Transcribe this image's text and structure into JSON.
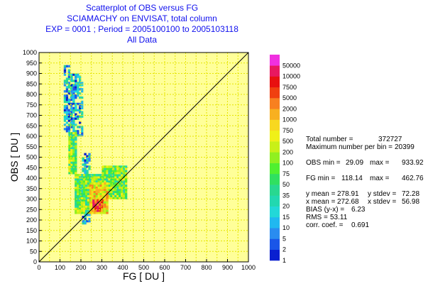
{
  "chart_data": {
    "type": "heatmap",
    "title_lines": [
      "Scatterplot of OBS versus FG",
      "SCIAMACHY on ENVISAT, total column",
      "EXP = 0001 ; Period = 2005100100 to 2005103118",
      "All Data"
    ],
    "xlabel": "FG  [ DU ]",
    "ylabel": "OBS  [ DU ]",
    "xlim": [
      0,
      1000
    ],
    "ylim": [
      0,
      1000
    ],
    "xticks": [
      "0",
      "100",
      "200",
      "300",
      "400",
      "500",
      "600",
      "700",
      "800",
      "900",
      "1000"
    ],
    "yticks": [
      "0",
      "50",
      "100",
      "150",
      "200",
      "250",
      "300",
      "350",
      "400",
      "450",
      "500",
      "550",
      "600",
      "650",
      "700",
      "750",
      "800",
      "850",
      "900",
      "950",
      "1000"
    ],
    "grid": true,
    "background_color": "#ffff99",
    "grid_color": "#e6e600",
    "diagonal": {
      "from": [
        0,
        0
      ],
      "to": [
        1000,
        1000
      ]
    },
    "density_regions": [
      {
        "level": "low",
        "x": [
          118,
          150
        ],
        "y": [
          620,
          934
        ]
      },
      {
        "level": "low",
        "x": [
          150,
          205
        ],
        "y": [
          600,
          900
        ]
      },
      {
        "level": "low",
        "x": [
          205,
          245
        ],
        "y": [
          180,
          520
        ]
      },
      {
        "level": "mid",
        "x": [
          140,
          175
        ],
        "y": [
          420,
          620
        ]
      },
      {
        "level": "mid",
        "x": [
          170,
          300
        ],
        "y": [
          230,
          420
        ]
      },
      {
        "level": "mid",
        "x": [
          300,
          420
        ],
        "y": [
          300,
          460
        ]
      },
      {
        "level": "high",
        "x": [
          240,
          330
        ],
        "y": [
          230,
          380
        ]
      },
      {
        "level": "peak",
        "x": [
          255,
          300
        ],
        "y": [
          240,
          300
        ]
      }
    ],
    "colorbar": {
      "labels": [
        "1",
        "2",
        "5",
        "10",
        "15",
        "20",
        "35",
        "50",
        "75",
        "100",
        "200",
        "500",
        "750",
        "1000",
        "2000",
        "5000",
        "7500",
        "10000",
        "50000"
      ],
      "colors": [
        "#0a1fd0",
        "#1a56e8",
        "#2a8cf0",
        "#20b8f0",
        "#22d8d8",
        "#22d8b0",
        "#28d890",
        "#30e060",
        "#50f030",
        "#90f020",
        "#c8f018",
        "#f0f018",
        "#f8d820",
        "#f8b020",
        "#f88020",
        "#f04010",
        "#e81010",
        "#e81860",
        "#f030e0"
      ]
    }
  },
  "stats": {
    "total_label": "Total number =",
    "total_value": "372727",
    "maxbin_label": "Maximum number per bin =",
    "maxbin_value": "20399",
    "obs_min_label": "OBS  min =",
    "obs_min_value": "29.09",
    "obs_max_label": "max =",
    "obs_max_value": "933.92",
    "fg_min_label": "FG  min =",
    "fg_min_value": "118.14",
    "fg_max_label": "max =",
    "fg_max_value": "462.76",
    "ymean_label": "y mean =",
    "ymean_value": "278.91",
    "ystdev_label": "y stdev =",
    "ystdev_value": "72.28",
    "xmean_label": "x mean =",
    "xmean_value": "272.68",
    "xstdev_label": "x stdev =",
    "xstdev_value": "56.98",
    "bias_label": "BIAS (y-x) =",
    "bias_value": "6.23",
    "rms_label": "RMS =",
    "rms_value": "53.11",
    "corr_label": "corr. coef. =",
    "corr_value": "0.691"
  }
}
